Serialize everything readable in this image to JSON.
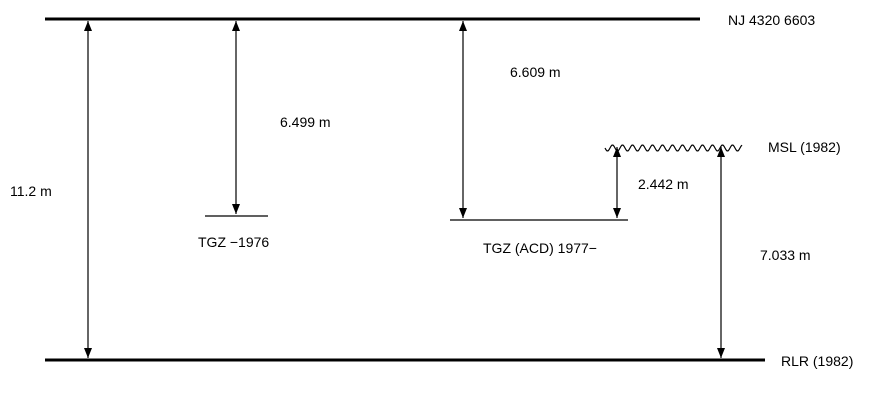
{
  "labels": {
    "top_datum": "NJ 4320 6603",
    "msl": "MSL (1982)",
    "rlr": "RLR (1982)",
    "tgz_old": "TGZ −1976",
    "tgz_acd": "TGZ  (ACD) 1977−"
  },
  "measurements": {
    "total": "11.2 m",
    "top_to_tgz_old": "6.499 m",
    "top_to_tgz_acd": "6.609 m",
    "tgz_acd_to_msl": "2.442 m",
    "msl_to_rlr": "7.033 m"
  }
}
